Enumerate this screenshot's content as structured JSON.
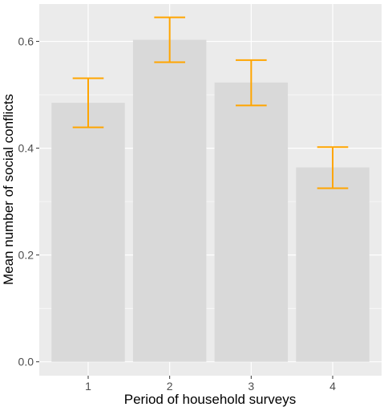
{
  "chart_data": {
    "type": "bar",
    "title": "",
    "xlabel": "Period of household surveys",
    "ylabel": "Mean number of social conflicts",
    "categories": [
      "1",
      "2",
      "3",
      "4"
    ],
    "values": [
      0.485,
      0.603,
      0.523,
      0.364
    ],
    "error_low": [
      0.439,
      0.561,
      0.48,
      0.325
    ],
    "error_high": [
      0.531,
      0.645,
      0.565,
      0.402
    ],
    "ylim": [
      -0.026,
      0.67
    ],
    "yticks": [
      0.0,
      0.2,
      0.4,
      0.6
    ],
    "ytick_labels": [
      "0.0",
      "0.2",
      "0.4",
      "0.6"
    ],
    "grid": true,
    "colors": {
      "panel": "#ebebeb",
      "grid": "#ffffff",
      "bar": "#d9d9d9",
      "errorbar": "#ffa500",
      "text": "#4d4d4d",
      "axis_title": "#000000"
    }
  }
}
